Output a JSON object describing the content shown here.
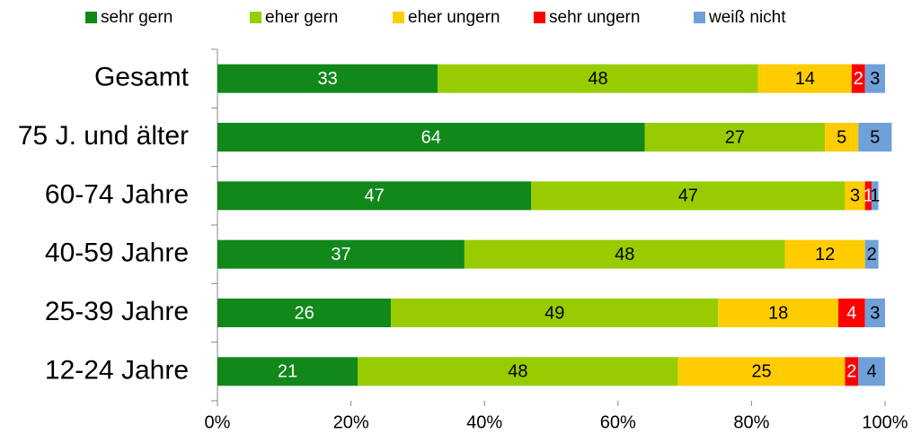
{
  "chart_data": {
    "type": "stacked-bar-horizontal",
    "categories": [
      "Gesamt",
      "75 J. und älter",
      "60-74 Jahre",
      "40-59 Jahre",
      "25-39 Jahre",
      "12-24 Jahre"
    ],
    "series": [
      {
        "name": "sehr gern",
        "color": "#12881a",
        "label_color": "#ffffff",
        "values": [
          33,
          64,
          47,
          37,
          26,
          21
        ]
      },
      {
        "name": "eher gern",
        "color": "#99cc00",
        "label_color": "#000000",
        "values": [
          48,
          27,
          47,
          48,
          49,
          48
        ]
      },
      {
        "name": "eher ungern",
        "color": "#ffcc00",
        "label_color": "#000000",
        "values": [
          14,
          5,
          3,
          12,
          18,
          25
        ]
      },
      {
        "name": "sehr ungern",
        "color": "#ff0000",
        "label_color": "#ffffff",
        "values": [
          2,
          null,
          1,
          null,
          4,
          2
        ]
      },
      {
        "name": "weiß nicht",
        "color": "#6fa0d8",
        "label_color": "#000000",
        "values": [
          3,
          5,
          1,
          2,
          3,
          4
        ]
      }
    ],
    "xlim": [
      0,
      100
    ],
    "xticks": [
      {
        "value": 0,
        "label": "0%"
      },
      {
        "value": 20,
        "label": "20%"
      },
      {
        "value": 40,
        "label": "40%"
      },
      {
        "value": 60,
        "label": "60%"
      },
      {
        "value": 80,
        "label": "80%"
      },
      {
        "value": 100,
        "label": "100%"
      }
    ],
    "legend": "top"
  }
}
